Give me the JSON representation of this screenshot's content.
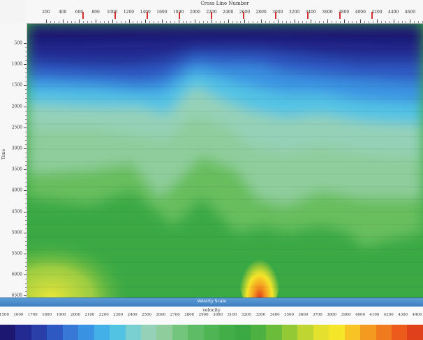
{
  "top_axis": {
    "title": "Cross Line Number",
    "ticks": [
      "200",
      "400",
      "600",
      "800",
      "1000",
      "1200",
      "1400",
      "1600",
      "1800",
      "2000",
      "2200",
      "2400",
      "2600",
      "2800",
      "3000",
      "3200",
      "3400",
      "3600",
      "3800",
      "4000",
      "4200",
      "4400",
      "4600"
    ]
  },
  "left_axis": {
    "label": "Time",
    "ticks": [
      "500",
      "1000",
      "1500",
      "2000",
      "2500",
      "3000",
      "3500",
      "4000",
      "4500",
      "5000",
      "5500",
      "6000",
      "6500"
    ]
  },
  "scale": {
    "title": "Velocity Scale",
    "axis_label": "velocity",
    "ticks": [
      "1500",
      "1600",
      "1700",
      "1800",
      "1900",
      "2000",
      "2100",
      "2200",
      "2300",
      "2400",
      "2500",
      "2600",
      "2700",
      "2800",
      "2900",
      "3000",
      "3100",
      "3200",
      "3300",
      "3400",
      "3500",
      "3600",
      "3700",
      "3800",
      "3900",
      "4000",
      "4100",
      "4200",
      "4300",
      "4400"
    ]
  },
  "colors": {
    "plot_background": "#3aa944",
    "scale_bar": "#4a8dd0",
    "colormap": [
      "#1c1872",
      "#232b92",
      "#2a3fa8",
      "#2e59c2",
      "#3778d6",
      "#3a93e2",
      "#44b0e8",
      "#53c3e4",
      "#7acfd0",
      "#95d1b8",
      "#8fcd9c",
      "#73c47d",
      "#5ebb66",
      "#4eb454",
      "#42ae48",
      "#3aa944",
      "#4cb140",
      "#6bbc3a",
      "#93c935",
      "#bfd632",
      "#e3e12e",
      "#f5e629",
      "#f8c425",
      "#f59a21",
      "#f07a1e",
      "#ec5a1c",
      "#e0401a"
    ]
  }
}
